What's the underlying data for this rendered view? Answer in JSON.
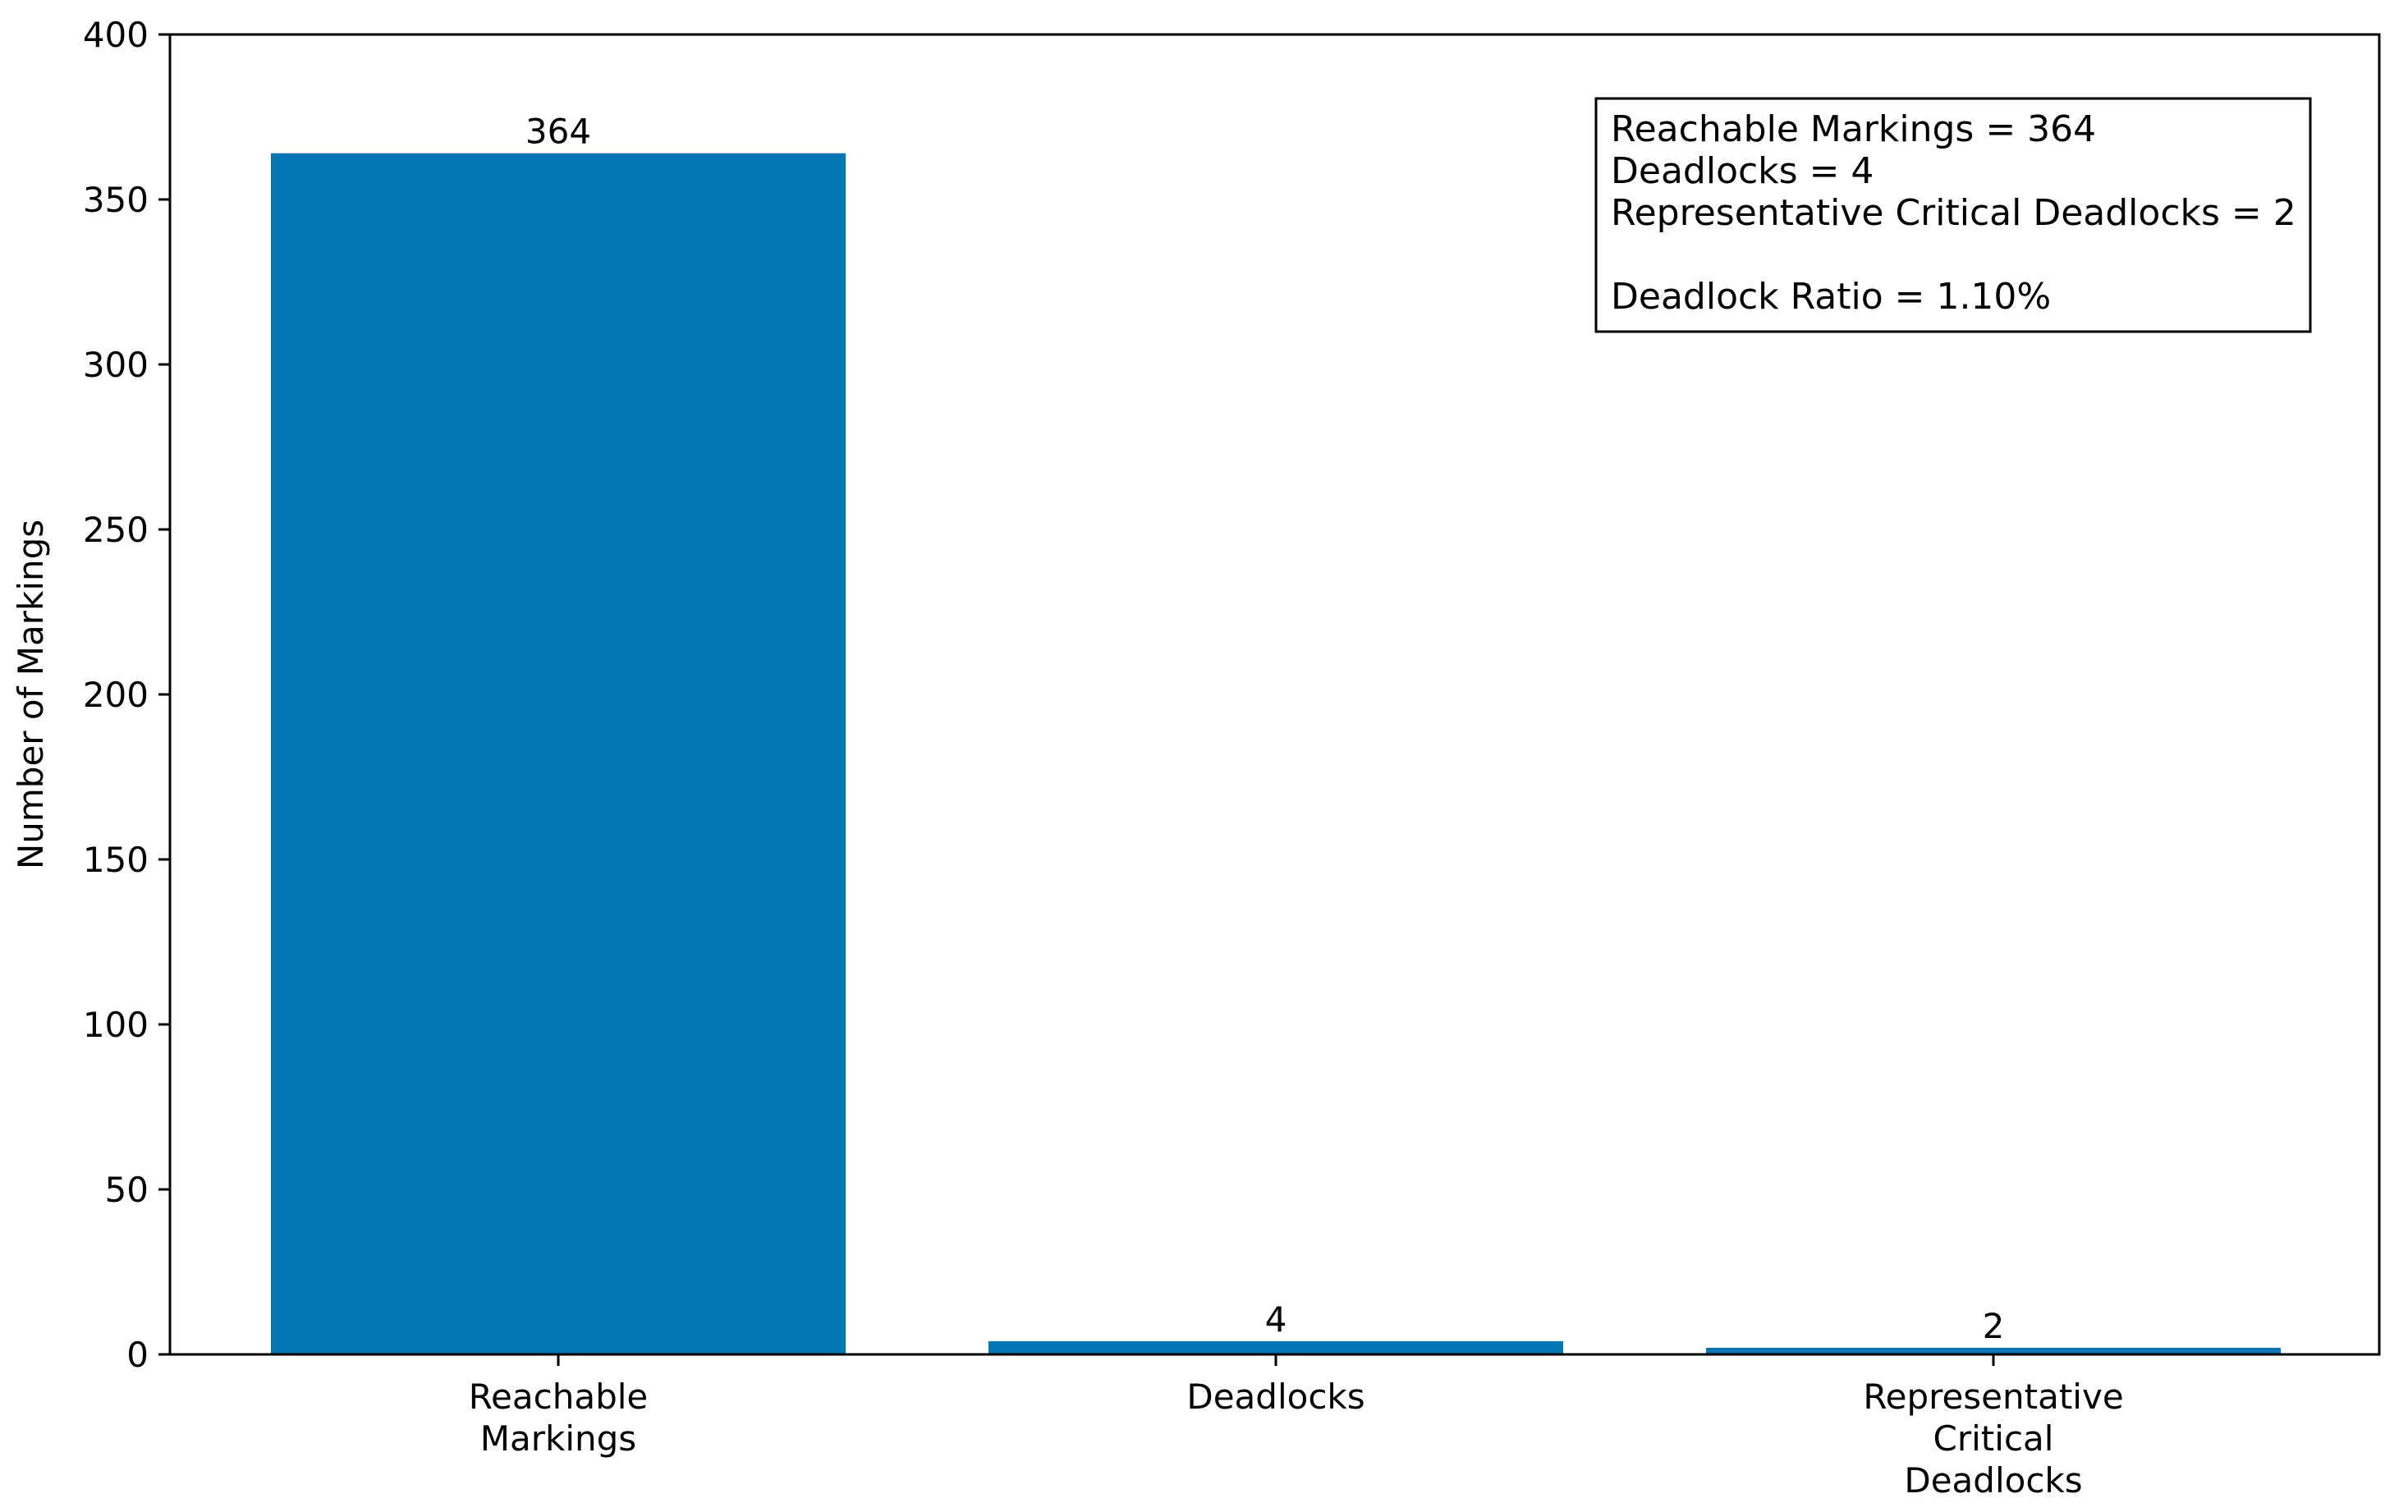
{
  "chart_data": {
    "type": "bar",
    "title": "",
    "xlabel": "",
    "ylabel": "Number of Markings",
    "categories": [
      [
        "Reachable",
        "Markings"
      ],
      [
        "Deadlocks"
      ],
      [
        "Representative",
        "Critical",
        "Deadlocks"
      ]
    ],
    "values": [
      364,
      4,
      2
    ],
    "data_labels": [
      "364",
      "4",
      "2"
    ],
    "ylim": [
      0,
      400
    ],
    "yticks": [
      0,
      50,
      100,
      150,
      200,
      250,
      300,
      350,
      400
    ],
    "bar_color": "#0076b4",
    "grid": false,
    "legend": null,
    "annotation": {
      "placement": "top-right",
      "lines": [
        "Reachable Markings = 364",
        "Deadlocks = 4",
        "Representative Critical Deadlocks = 2",
        "",
        "Deadlock Ratio = 1.10%"
      ]
    }
  }
}
